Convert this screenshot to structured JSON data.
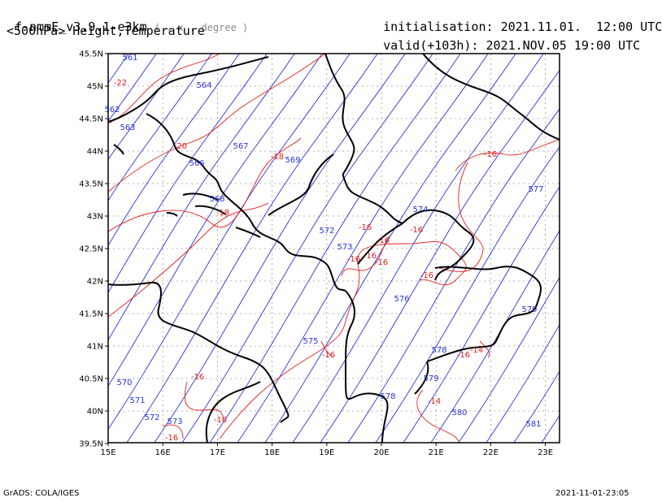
{
  "header": {
    "model": "f-nmmE_v3.9.1-e3km",
    "grid_unit": "( . x . degree )",
    "field": "<500hPa> Height,Temperature",
    "init_label": "initialisation:",
    "init_value": "2021.11.01.  12:00 UTC",
    "valid_label": "valid(+103h):",
    "valid_value": "2021.NOV.05 19:00 UTC"
  },
  "axes": {
    "x_ticks": [
      "15E",
      "16E",
      "17E",
      "18E",
      "19E",
      "20E",
      "21E",
      "22E",
      "23E"
    ],
    "y_ticks": [
      "45.5N",
      "45N",
      "44.5N",
      "44N",
      "43.5N",
      "43N",
      "42.5N",
      "42N",
      "41.5N",
      "41N",
      "40.5N",
      "40N",
      "39.5N"
    ]
  },
  "colors": {
    "height_contour": "#2a33d9",
    "temperature_contour": "#e3201c",
    "coastline": "#000000",
    "grid": "#9a9a9a"
  },
  "height_labels": [
    "561",
    "564",
    "567",
    "569",
    "566",
    "563",
    "562",
    "568",
    "572",
    "573",
    "574",
    "576",
    "575",
    "578",
    "577",
    "579",
    "579",
    "570",
    "571",
    "572",
    "573",
    "578",
    "580",
    "581"
  ],
  "temperature_labels": [
    "-22",
    "-20",
    "-18",
    "-18",
    "-16",
    "-16",
    "-16",
    "-16",
    "-16",
    "-16",
    "-16",
    "-16",
    "-16",
    "-16",
    "-14",
    "-14",
    "-16",
    "-16",
    "-16"
  ],
  "footer": {
    "left": "GrADS: COLA/IGES",
    "right": "2021-11-01-23:05"
  }
}
